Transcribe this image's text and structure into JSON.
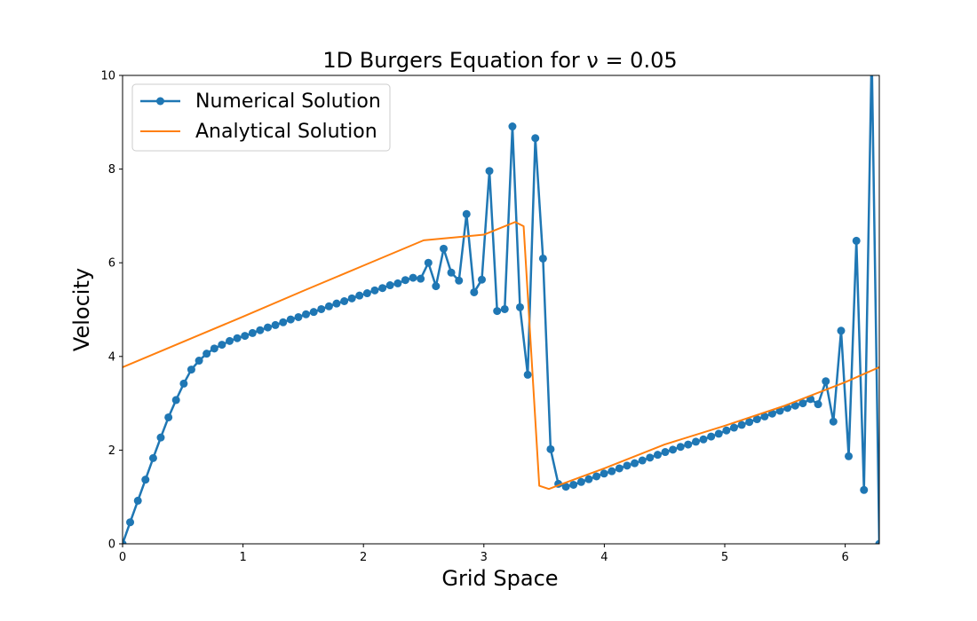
{
  "chart_data": {
    "type": "line",
    "title": "1D Burgers Equation for ν = 0.05",
    "xlabel": "Grid Space",
    "ylabel": "Velocity",
    "xlim": [
      0,
      6.2832
    ],
    "ylim": [
      0,
      10
    ],
    "xticks": [
      "0",
      "1",
      "2",
      "3",
      "4",
      "5",
      "6"
    ],
    "yticks": [
      "0",
      "2",
      "4",
      "6",
      "8",
      "10"
    ],
    "grid": false,
    "legend_position": "upper-left",
    "series": [
      {
        "name": "Numerical Solution",
        "color": "#1f77b4",
        "marker": "circle",
        "x": [
          0.0,
          0.063,
          0.127,
          0.19,
          0.254,
          0.317,
          0.381,
          0.444,
          0.508,
          0.571,
          0.635,
          0.698,
          0.762,
          0.825,
          0.889,
          0.952,
          1.016,
          1.079,
          1.142,
          1.206,
          1.269,
          1.333,
          1.396,
          1.46,
          1.523,
          1.587,
          1.65,
          1.714,
          1.777,
          1.841,
          1.904,
          1.967,
          2.031,
          2.094,
          2.158,
          2.221,
          2.285,
          2.348,
          2.412,
          2.475,
          2.539,
          2.602,
          2.666,
          2.729,
          2.793,
          2.856,
          2.919,
          2.983,
          3.046,
          3.11,
          3.173,
          3.237,
          3.3,
          3.364,
          3.427,
          3.491,
          3.554,
          3.618,
          3.681,
          3.744,
          3.808,
          3.871,
          3.935,
          3.998,
          4.062,
          4.125,
          4.189,
          4.252,
          4.316,
          4.379,
          4.443,
          4.506,
          4.569,
          4.633,
          4.696,
          4.76,
          4.823,
          4.887,
          4.95,
          5.014,
          5.077,
          5.141,
          5.204,
          5.268,
          5.331,
          5.394,
          5.458,
          5.521,
          5.585,
          5.648,
          5.712,
          5.775,
          5.839,
          5.902,
          5.966,
          6.029,
          6.093,
          6.156,
          6.22,
          6.283
        ],
        "y": [
          0.0,
          0.46,
          0.92,
          1.37,
          1.83,
          2.27,
          2.7,
          3.07,
          3.42,
          3.72,
          3.91,
          4.06,
          4.17,
          4.25,
          4.33,
          4.39,
          4.44,
          4.5,
          4.56,
          4.62,
          4.67,
          4.73,
          4.79,
          4.84,
          4.9,
          4.95,
          5.01,
          5.07,
          5.13,
          5.18,
          5.24,
          5.3,
          5.35,
          5.41,
          5.46,
          5.52,
          5.56,
          5.63,
          5.68,
          5.66,
          6.0,
          5.5,
          6.3,
          5.79,
          5.62,
          7.04,
          5.37,
          5.64,
          7.96,
          4.97,
          5.01,
          8.91,
          5.05,
          3.61,
          8.66,
          6.09,
          2.02,
          1.28,
          1.22,
          1.26,
          1.32,
          1.38,
          1.44,
          1.5,
          1.55,
          1.61,
          1.67,
          1.72,
          1.78,
          1.84,
          1.9,
          1.96,
          2.01,
          2.07,
          2.12,
          2.18,
          2.23,
          2.29,
          2.35,
          2.42,
          2.48,
          2.54,
          2.6,
          2.66,
          2.72,
          2.78,
          2.84,
          2.9,
          2.95,
          3.0,
          3.09,
          2.98,
          3.47,
          2.61,
          4.55,
          1.87,
          6.47,
          1.15,
          10.5,
          0.0
        ]
      },
      {
        "name": "Analytical Solution",
        "color": "#ff7f0e",
        "marker": "none",
        "x": [
          0.0,
          0.5,
          1.0,
          1.5,
          2.0,
          2.5,
          3.0,
          3.26,
          3.33,
          3.46,
          3.54,
          3.62,
          4.0,
          4.5,
          5.0,
          5.5,
          6.0,
          6.2832
        ],
        "y": [
          3.77,
          4.31,
          4.85,
          5.4,
          5.94,
          6.48,
          6.6,
          6.87,
          6.78,
          1.24,
          1.17,
          1.25,
          1.61,
          2.12,
          2.52,
          2.95,
          3.45,
          3.77
        ]
      }
    ]
  }
}
